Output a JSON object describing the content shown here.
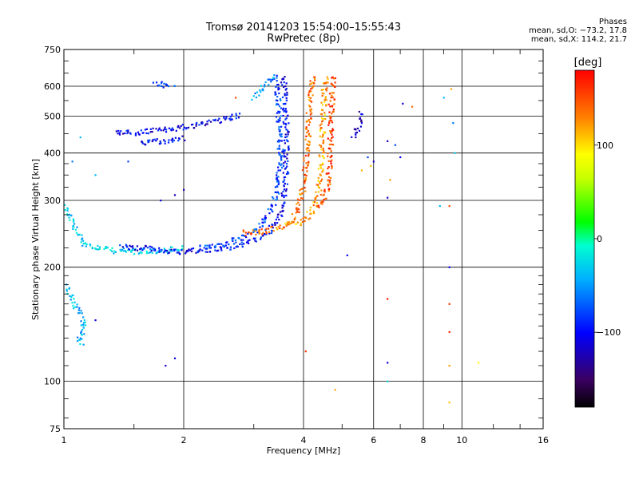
{
  "chart_data": {
    "type": "scatter",
    "title": "Tromsø 20141203 15:54:00–15:55:43",
    "subtitle": "RwPretec (8p)",
    "xlabel": "Frequency [MHz]",
    "ylabel": "Stationary phase Virtual Height [km]",
    "x_scale": "log",
    "y_scale": "log",
    "xlim": [
      1,
      16
    ],
    "ylim": [
      75,
      750
    ],
    "x_ticks": [
      1,
      2,
      4,
      6,
      8,
      10,
      16
    ],
    "x_tick_labels": [
      "1",
      "2",
      "4",
      "6",
      "8",
      "10",
      "16"
    ],
    "y_ticks": [
      75,
      100,
      200,
      300,
      400,
      500,
      600,
      750
    ],
    "y_tick_labels": [
      "75",
      "100",
      "200",
      "300",
      "400",
      "500",
      "600",
      "750"
    ],
    "grid": true,
    "phase_info": {
      "heading": "Phases",
      "line1": "mean, sd,O: −73.2, 17.8",
      "line2": "mean, sd,X: 114.2, 21.7"
    },
    "colorbar": {
      "label": "[deg]",
      "range": [
        -180,
        180
      ],
      "ticks": [
        100,
        0,
        -100
      ],
      "tick_labels": [
        "100",
        "0",
        "−100"
      ]
    },
    "traces": [
      {
        "points": [
          [
            1.0,
            290
          ],
          [
            1.05,
            262
          ],
          [
            1.08,
            245
          ],
          [
            1.12,
            232
          ],
          [
            1.2,
            225
          ],
          [
            1.35,
            221
          ],
          [
            1.5,
            220
          ],
          [
            1.75,
            221
          ],
          [
            2.0,
            224
          ]
        ],
        "phase": -30
      },
      {
        "points": [
          [
            1.4,
            226
          ],
          [
            1.6,
            224
          ],
          [
            1.8,
            221
          ],
          [
            2.0,
            220
          ],
          [
            2.3,
            222
          ],
          [
            2.6,
            226
          ],
          [
            2.9,
            232
          ],
          [
            3.1,
            240
          ],
          [
            3.3,
            250
          ],
          [
            3.45,
            265
          ],
          [
            3.55,
            290
          ],
          [
            3.6,
            320
          ],
          [
            3.62,
            380
          ],
          [
            3.62,
            450
          ],
          [
            3.6,
            520
          ],
          [
            3.58,
            600
          ],
          [
            3.55,
            645
          ]
        ],
        "phase": -100
      },
      {
        "points": [
          [
            2.2,
            226
          ],
          [
            2.5,
            230
          ],
          [
            2.8,
            238
          ],
          [
            3.0,
            248
          ],
          [
            3.2,
            265
          ],
          [
            3.35,
            290
          ],
          [
            3.45,
            330
          ],
          [
            3.5,
            400
          ],
          [
            3.48,
            480
          ],
          [
            3.45,
            560
          ],
          [
            3.4,
            640
          ]
        ],
        "phase": -80
      },
      {
        "points": [
          [
            2.8,
            246
          ],
          [
            3.1,
            248
          ],
          [
            3.4,
            252
          ],
          [
            3.7,
            262
          ],
          [
            3.85,
            280
          ],
          [
            3.95,
            305
          ],
          [
            4.02,
            340
          ],
          [
            4.08,
            400
          ],
          [
            4.12,
            470
          ],
          [
            4.15,
            540
          ],
          [
            4.2,
            610
          ],
          [
            4.25,
            650
          ]
        ],
        "phase": 140
      },
      {
        "points": [
          [
            3.6,
            258
          ],
          [
            3.9,
            262
          ],
          [
            4.1,
            272
          ],
          [
            4.25,
            285
          ],
          [
            4.35,
            310
          ],
          [
            4.42,
            360
          ],
          [
            4.45,
            420
          ],
          [
            4.48,
            500
          ],
          [
            4.5,
            580
          ],
          [
            4.55,
            640
          ]
        ],
        "phase": 120
      },
      {
        "points": [
          [
            4.3,
            290
          ],
          [
            4.5,
            300
          ],
          [
            4.6,
            330
          ],
          [
            4.65,
            380
          ],
          [
            4.68,
            440
          ],
          [
            4.7,
            520
          ],
          [
            4.72,
            600
          ],
          [
            4.75,
            645
          ]
        ],
        "phase": 155
      },
      {
        "points": [
          [
            3.0,
            560
          ],
          [
            3.2,
            605
          ],
          [
            3.4,
            640
          ]
        ],
        "phase": -50
      },
      {
        "points": [
          [
            1.35,
            450
          ],
          [
            1.6,
            455
          ],
          [
            1.9,
            465
          ],
          [
            2.2,
            475
          ],
          [
            2.5,
            490
          ],
          [
            2.8,
            505
          ]
        ],
        "phase": -105
      },
      {
        "points": [
          [
            1.55,
            425
          ],
          [
            1.8,
            430
          ],
          [
            2.0,
            440
          ]
        ],
        "phase": -100
      },
      {
        "points": [
          [
            1.7,
            610
          ],
          [
            1.8,
            605
          ],
          [
            1.9,
            600
          ]
        ],
        "phase": -90
      },
      {
        "points": [
          [
            5.35,
            440
          ],
          [
            5.5,
            470
          ],
          [
            5.6,
            510
          ]
        ],
        "phase": -120
      },
      {
        "points": [
          [
            1.0,
            180
          ],
          [
            1.05,
            165
          ],
          [
            1.1,
            150
          ],
          [
            1.12,
            140
          ],
          [
            1.1,
            130
          ],
          [
            1.08,
            125
          ]
        ],
        "phase": -40
      }
    ],
    "sparse_points": [
      [
        7.1,
        540,
        -110
      ],
      [
        7.5,
        530,
        140
      ],
      [
        9.0,
        560,
        -40
      ],
      [
        9.4,
        590,
        120
      ],
      [
        9.5,
        480,
        -60
      ],
      [
        9.6,
        400,
        -30
      ],
      [
        6.5,
        430,
        -120
      ],
      [
        6.6,
        340,
        120
      ],
      [
        6.5,
        305,
        -120
      ],
      [
        6.8,
        420,
        -80
      ],
      [
        7.0,
        390,
        -100
      ],
      [
        8.8,
        290,
        -40
      ],
      [
        9.3,
        290,
        150
      ],
      [
        9.3,
        200,
        -100
      ],
      [
        9.3,
        160,
        160
      ],
      [
        9.3,
        135,
        165
      ],
      [
        6.5,
        165,
        170
      ],
      [
        6.5,
        112,
        -110
      ],
      [
        6.5,
        100,
        -20
      ],
      [
        5.15,
        215,
        -100
      ],
      [
        4.05,
        120,
        160
      ],
      [
        4.8,
        95,
        120
      ],
      [
        9.3,
        110,
        120
      ],
      [
        9.3,
        88,
        110
      ],
      [
        11.0,
        112,
        90
      ],
      [
        1.9,
        115,
        -110
      ],
      [
        1.8,
        110,
        -120
      ],
      [
        5.8,
        390,
        -80
      ],
      [
        5.9,
        370,
        110
      ],
      [
        5.6,
        360,
        115
      ],
      [
        6.0,
        380,
        -120
      ],
      [
        1.45,
        380,
        -80
      ],
      [
        1.9,
        310,
        -120
      ],
      [
        1.75,
        300,
        -110
      ],
      [
        2.0,
        320,
        -120
      ],
      [
        1.2,
        350,
        -40
      ],
      [
        1.1,
        440,
        -40
      ],
      [
        1.05,
        380,
        -60
      ],
      [
        2.7,
        560,
        150
      ],
      [
        1.2,
        145,
        -110
      ],
      [
        1.12,
        125,
        -50
      ]
    ]
  }
}
